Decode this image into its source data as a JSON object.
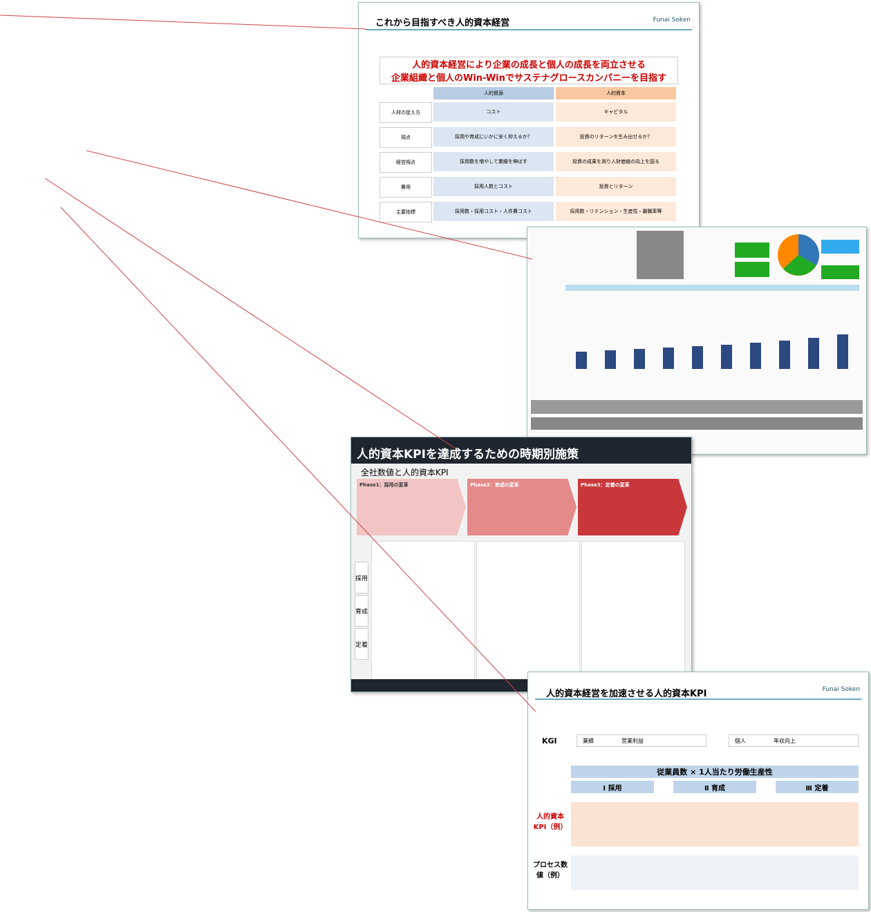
{
  "slide1": {
    "title": "これから目指すべき人的資本経営",
    "logo": "Funai Soken",
    "headline": [
      "人的資本経営により企業の成長と個人の成長を両立させる",
      "企業組織と個人のWin-Winでサステナグロースカンパニーを目指す"
    ],
    "columns": [
      "人的資源",
      "人的資本"
    ],
    "rows": [
      [
        "人材の捉え方",
        "コスト",
        "キャピタル"
      ],
      [
        "視点",
        "採用や育成にいかに安く抑えるか？",
        "投資のリターンを生み出せるか？"
      ],
      [
        "経営視点",
        "採用数を増やして業績を伸ばす",
        "投資の成果を測り人財価値の向上を図る"
      ],
      [
        "費用",
        "採用人数とコスト",
        "投資とリターン"
      ],
      [
        "主要指標",
        "採用数・採用コスト・人件費コスト",
        "採用数・リテンション・生産性・離職率等"
      ]
    ]
  },
  "slide3": {
    "title": "人的資本KPIを達成するための時期別施策",
    "subtitle": "全社数値と人的資本KPI",
    "phases": [
      "Phase1：採用の変革",
      "Phase2：育成の変革",
      "Phase3：定着の変革"
    ],
    "row_labels": [
      "採用",
      "育成",
      "定着"
    ]
  },
  "slide4": {
    "title": "人的資本経営を加速させる人的資本KPI",
    "logo": "Funai Soken",
    "kgi": "KGI",
    "kgi_left": [
      "業績",
      "営業利益"
    ],
    "kgi_right": [
      "個人",
      "年収向上"
    ],
    "formula": "従業員数 × 1人当たり労働生産性",
    "pillars": [
      "Ⅰ 採用",
      "Ⅱ 育成",
      "Ⅲ 定着"
    ],
    "kpi_label": "人的資本KPI（例）",
    "process_label": "プロセス数値（例）"
  }
}
